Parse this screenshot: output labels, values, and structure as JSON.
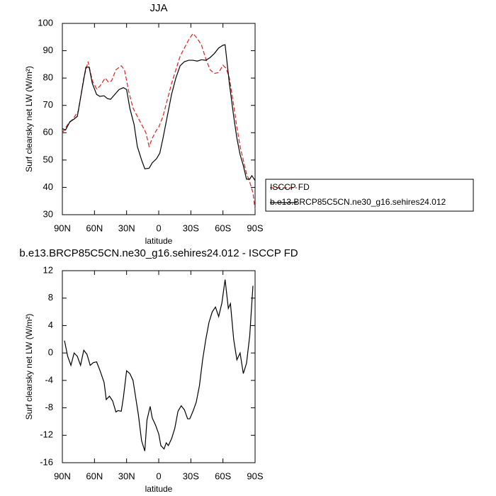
{
  "chart_data": [
    {
      "type": "line",
      "title": "JJA",
      "xlabel": "latitude",
      "ylabel": "Surf clearsky net LW (W/m²)",
      "xlim": [
        90,
        -90
      ],
      "ylim": [
        30,
        100
      ],
      "xticks": [
        {
          "value": 90,
          "label": "90N"
        },
        {
          "value": 60,
          "label": "60N"
        },
        {
          "value": 30,
          "label": "30N"
        },
        0,
        {
          "value": -30,
          "label": "30S"
        },
        {
          "value": -60,
          "label": "60S"
        },
        {
          "value": -90,
          "label": "90S"
        }
      ],
      "yticks": [
        30,
        40,
        50,
        60,
        70,
        80,
        90,
        100
      ],
      "legend": "outside-right",
      "series": [
        {
          "name": "ISCCP FD",
          "color": "#e0201b",
          "dashed": true,
          "x": [
            90,
            85,
            80,
            75,
            70,
            66,
            62,
            58,
            55,
            50,
            47,
            44,
            40,
            35,
            32,
            28,
            24,
            20,
            16,
            12,
            9,
            6,
            2,
            0,
            -4,
            -8,
            -12,
            -16,
            -20,
            -24,
            -28,
            -32,
            -36,
            -40,
            -44,
            -48,
            -52,
            -56,
            -60,
            -63,
            -66,
            -70,
            -73,
            -76,
            -79,
            -82,
            -85,
            -88,
            -90
          ],
          "values": [
            60,
            63,
            65,
            68,
            80,
            86,
            79,
            76,
            77,
            80,
            78.5,
            79,
            83,
            84.5,
            83,
            75,
            69,
            66,
            63,
            60,
            55,
            58,
            61,
            62,
            66,
            72,
            78,
            83,
            88,
            91,
            94,
            96.3,
            94.5,
            92,
            87,
            83,
            81.7,
            82,
            84.7,
            83.5,
            80,
            70,
            62,
            55,
            50,
            45,
            42,
            38,
            32
          ]
        },
        {
          "name": "b.e13.BRCP85C5CN.ne30_g16.sehires24.012",
          "color": "#000000",
          "dashed": false,
          "x": [
            90,
            87,
            83,
            79,
            76,
            72,
            68,
            65,
            62,
            58,
            55,
            51,
            48,
            45,
            41,
            37,
            33,
            30,
            27,
            23,
            20,
            16,
            13,
            9,
            6,
            2,
            -1,
            -4,
            -8,
            -12,
            -16,
            -20,
            -24,
            -28,
            -32,
            -36,
            -40,
            -44,
            -48,
            -52,
            -56,
            -60,
            -62,
            -66,
            -70,
            -73,
            -76,
            -79,
            -82,
            -85,
            -87,
            -90
          ],
          "values": [
            61.5,
            61,
            64,
            65,
            66,
            75,
            84,
            84,
            78,
            74,
            73.3,
            73.5,
            72.5,
            72.2,
            74,
            75.8,
            76.5,
            75.8,
            69,
            63,
            55,
            50,
            46.8,
            47,
            49,
            50.5,
            52.5,
            58,
            66,
            74,
            80,
            84.5,
            86,
            86.5,
            86.5,
            86.2,
            86.7,
            86.5,
            87.5,
            89,
            91,
            92,
            92.2,
            78,
            66,
            58,
            52,
            48,
            43,
            43,
            44.3,
            42.5
          ]
        }
      ]
    },
    {
      "type": "line",
      "title": "b.e13.BRCP85C5CN.ne30_g16.sehires24.012 - ISCCP FD",
      "xlabel": "latitude",
      "ylabel": "Surf clearsky net LW (W/m²)",
      "xlim": [
        90,
        -90
      ],
      "ylim": [
        -16,
        12
      ],
      "xticks": [
        {
          "value": 90,
          "label": "90N"
        },
        {
          "value": 60,
          "label": "60N"
        },
        {
          "value": 30,
          "label": "30N"
        },
        0,
        {
          "value": -30,
          "label": "30S"
        },
        {
          "value": -60,
          "label": "60S"
        },
        {
          "value": -90,
          "label": "90S"
        }
      ],
      "yticks": [
        -16,
        -12,
        -8,
        -4,
        0,
        4,
        8,
        12
      ],
      "series": [
        {
          "color": "#000000",
          "dashed": false,
          "x": [
            88,
            85,
            82,
            79,
            76,
            73,
            70,
            67,
            64,
            61,
            58,
            55,
            51,
            49,
            46,
            43,
            40,
            38,
            35,
            33,
            30,
            27,
            24,
            22,
            19,
            16,
            13,
            11,
            8,
            6,
            3,
            0,
            -2,
            -5,
            -7,
            -9,
            -12,
            -15,
            -18,
            -21,
            -24,
            -27,
            -29,
            -32,
            -35,
            -38,
            -41,
            -44,
            -47,
            -50,
            -53,
            -56,
            -59,
            -62,
            -65,
            -67,
            -70,
            -73,
            -76,
            -79,
            -82,
            -85,
            -88
          ],
          "values": [
            1.8,
            -0.5,
            -1.8,
            0,
            -0.5,
            -1.8,
            0.4,
            -0.2,
            -1.8,
            -1.4,
            -1.3,
            -2.5,
            -4.3,
            -6.8,
            -6.3,
            -7,
            -8.6,
            -8.4,
            -8.5,
            -6.5,
            -2.6,
            -3,
            -4,
            -6,
            -9,
            -12.8,
            -14.3,
            -9.8,
            -7.8,
            -9.5,
            -10.5,
            -11.8,
            -13.5,
            -14,
            -13.1,
            -13.5,
            -12.5,
            -11,
            -8.5,
            -7.7,
            -8.3,
            -9.6,
            -9.6,
            -8.5,
            -7.2,
            -4.8,
            -1,
            2,
            4.5,
            6,
            6.7,
            5.3,
            7.3,
            10.7,
            6.5,
            7.2,
            2,
            -1,
            0,
            -3,
            -1.5,
            2.5,
            9.8
          ]
        }
      ]
    }
  ]
}
